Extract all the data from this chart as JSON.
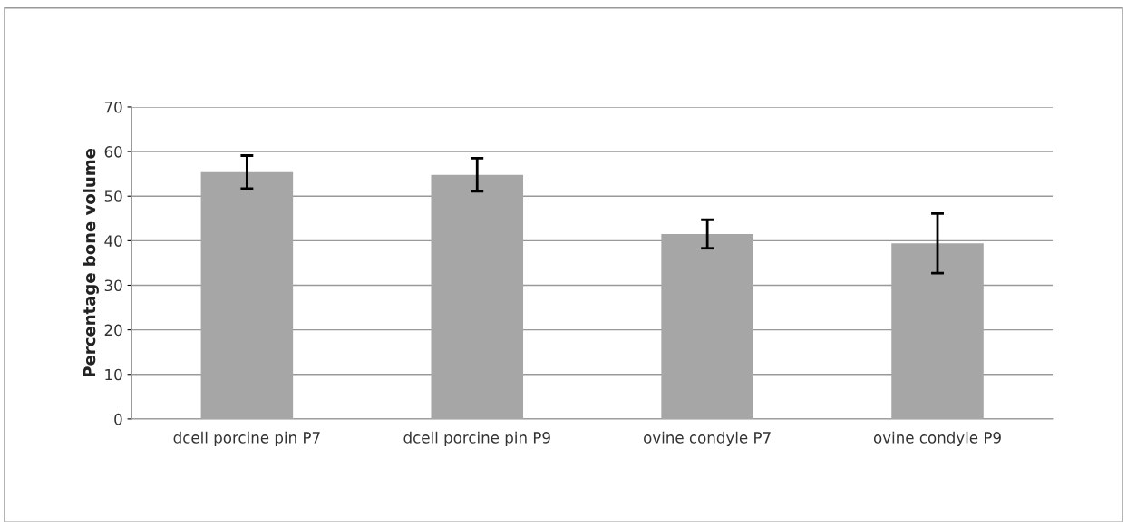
{
  "chart_data": {
    "type": "bar",
    "ylabel": "Percentage bone volume",
    "categories": [
      "dcell porcine pin P7",
      "dcell porcine pin P9",
      "ovine condyle P7",
      "ovine condyle P9"
    ],
    "values": [
      55.4,
      54.8,
      41.5,
      39.4
    ],
    "errors": [
      3.7,
      3.7,
      3.2,
      6.7
    ],
    "color": "#a6a6a6",
    "ylim": [
      0,
      70
    ],
    "yticks": [
      0,
      10,
      20,
      30,
      40,
      50,
      60,
      70
    ],
    "grid": "y"
  }
}
